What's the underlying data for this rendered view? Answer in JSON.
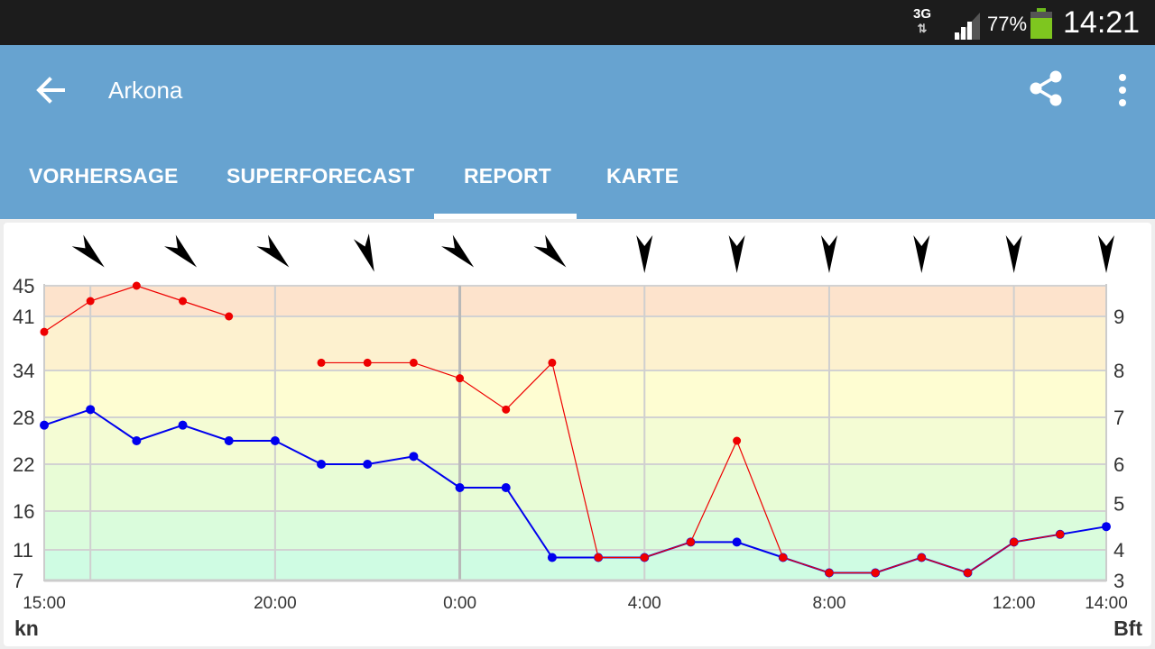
{
  "status_bar": {
    "network": "3G",
    "battery": "77%",
    "time": "14:21"
  },
  "app_bar": {
    "title": "Arkona",
    "back_icon": "arrow-left-icon",
    "share_icon": "share-icon",
    "more_icon": "more-vert-icon"
  },
  "tabs": [
    {
      "label": "VORHERSAGE",
      "selected": false
    },
    {
      "label": "SUPERFORECAST",
      "selected": false
    },
    {
      "label": "REPORT",
      "selected": true
    },
    {
      "label": "KARTE",
      "selected": false
    }
  ],
  "chart_data": {
    "type": "line",
    "x_labels": [
      "15:00",
      "20:00",
      "0:00",
      "4:00",
      "8:00",
      "12:00",
      "14:00"
    ],
    "y_left_unit": "kn",
    "y_right_unit": "Bft",
    "y_left_ticks": [
      7,
      11,
      16,
      22,
      28,
      34,
      41,
      45
    ],
    "y_right_ticks": [
      3,
      4,
      5,
      6,
      7,
      8,
      9
    ],
    "ylim": [
      7,
      45
    ],
    "series": [
      {
        "color": "#0000ee",
        "values": [
          27,
          29,
          25,
          27,
          25,
          25,
          22,
          22,
          23,
          19,
          19,
          10,
          10,
          10,
          12,
          12,
          10,
          8,
          8,
          10,
          8,
          12,
          13,
          14
        ]
      },
      {
        "color": "#ee0000",
        "values": [
          39,
          43,
          45,
          43,
          41,
          null,
          35,
          35,
          35,
          33,
          29,
          35,
          10,
          10,
          12,
          25,
          10,
          8,
          8,
          10,
          8,
          12,
          13,
          null
        ]
      }
    ],
    "wind_direction_deg": [
      315,
      315,
      315,
      340,
      315,
      315,
      0,
      0,
      0,
      0,
      0,
      0,
      330
    ],
    "background_bands": [
      {
        "from": 41,
        "to": 45,
        "color": "#fde3cc"
      },
      {
        "from": 34,
        "to": 41,
        "color": "#fdf1cf"
      },
      {
        "from": 28,
        "to": 34,
        "color": "#fefdd2"
      },
      {
        "from": 22,
        "to": 28,
        "color": "#f4fcd4"
      },
      {
        "from": 16,
        "to": 22,
        "color": "#e8fcd6"
      },
      {
        "from": 11,
        "to": 16,
        "color": "#dafcdc"
      },
      {
        "from": 7,
        "to": 11,
        "color": "#cffce3"
      }
    ],
    "grid": true
  }
}
